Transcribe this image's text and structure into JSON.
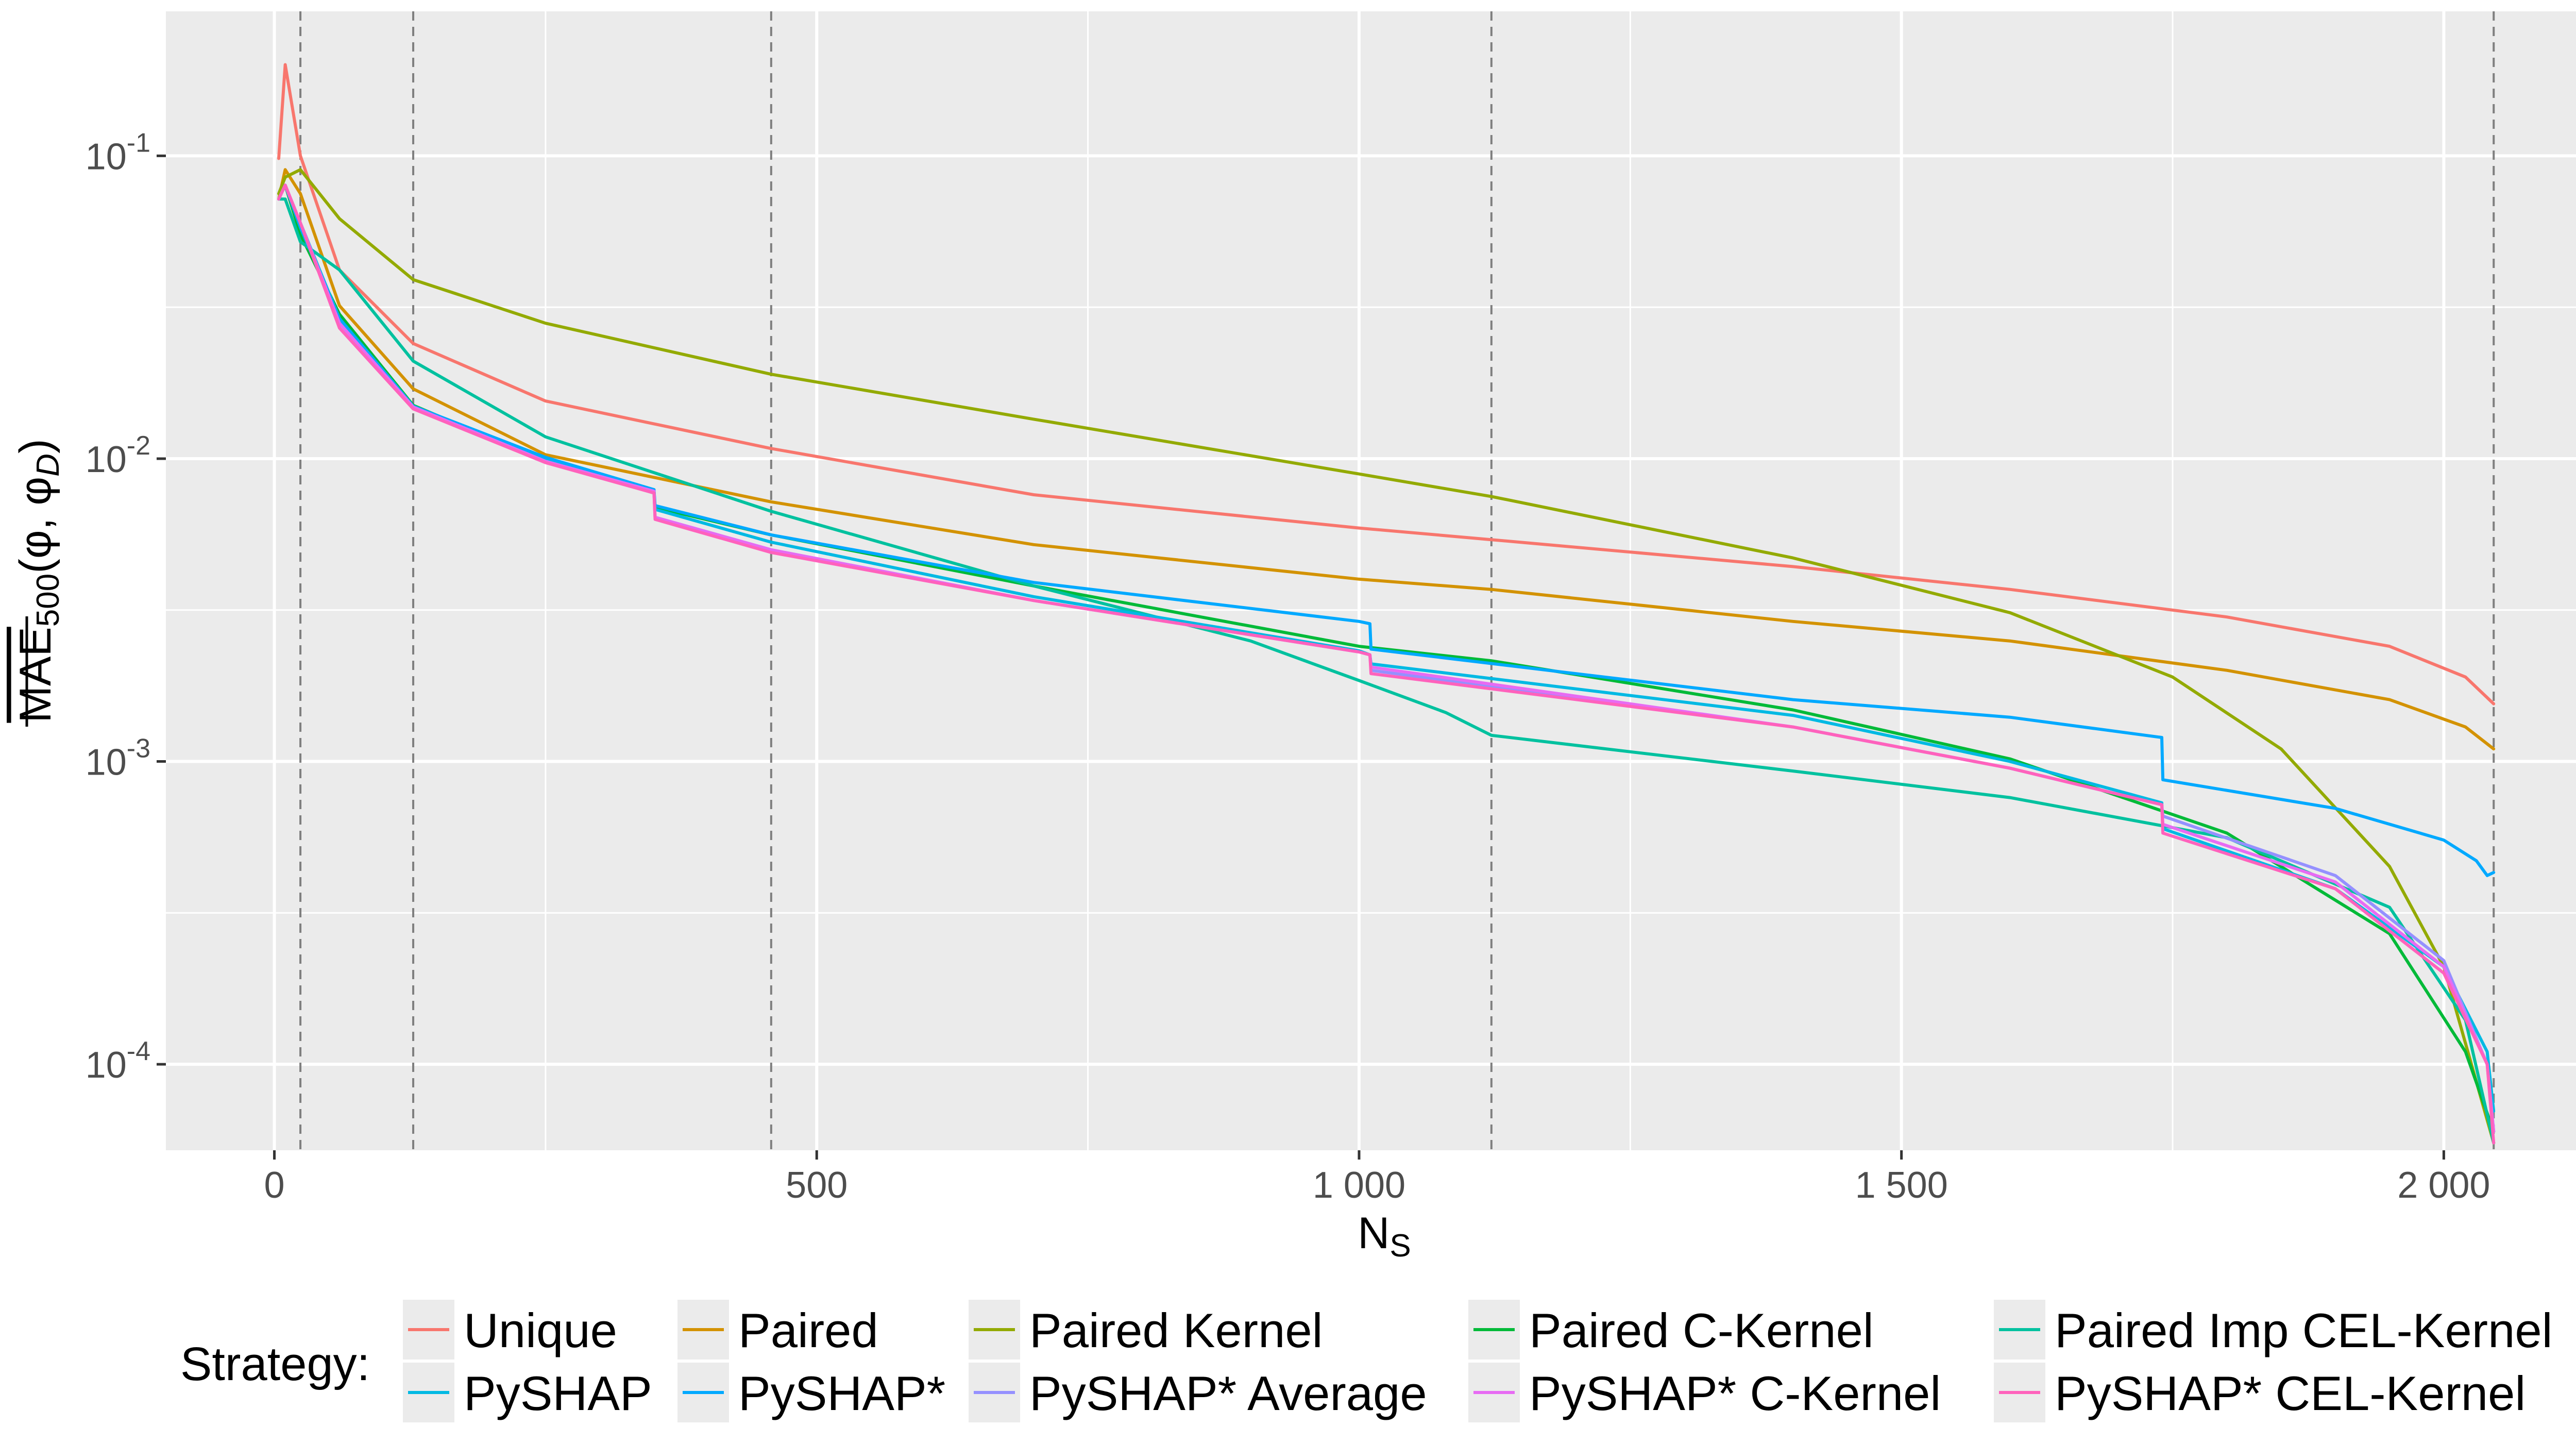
{
  "chart_data": {
    "type": "line",
    "title": "",
    "xlabel": "N",
    "xlabel_sub": "S",
    "ylabel": "MAE",
    "ylabel_sub": "500",
    "ylabel_rest": "(φ, φ",
    "ylabel_rest_sub": "D",
    "ylabel_end": ")",
    "yscale": "log10",
    "xlim": [
      -100,
      2148
    ],
    "ylim": [
      5.2e-05,
      0.3
    ],
    "x_ticks": [
      0,
      500,
      1000,
      1500,
      2000
    ],
    "x_tick_labels": [
      "0",
      "500",
      "1 000",
      "1 500",
      "2 000"
    ],
    "y_ticks": [
      {
        "value": 0.1,
        "base": "10",
        "exp": "-1"
      },
      {
        "value": 0.01,
        "base": "10",
        "exp": "-2"
      },
      {
        "value": 0.001,
        "base": "10",
        "exp": "-3"
      },
      {
        "value": 0.0001,
        "base": "10",
        "exp": "-4"
      }
    ],
    "vlines": [
      24,
      128,
      458,
      1122,
      2046
    ],
    "grid": true,
    "legend": {
      "title": "Strategy:",
      "position": "bottom"
    },
    "series": [
      {
        "name": "Unique",
        "color": "#F8766D",
        "x": [
          4,
          10,
          24,
          60,
          128,
          250,
          458,
          700,
          1000,
          1122,
          1400,
          1600,
          1800,
          1950,
          2020,
          2046
        ],
        "y": [
          0.098,
          0.2,
          0.1,
          0.042,
          0.024,
          0.0155,
          0.0108,
          0.0076,
          0.0059,
          0.0054,
          0.0044,
          0.0037,
          0.003,
          0.0024,
          0.0019,
          0.00155
        ]
      },
      {
        "name": "Paired",
        "color": "#D39200",
        "x": [
          4,
          10,
          24,
          60,
          128,
          250,
          458,
          700,
          1000,
          1122,
          1400,
          1600,
          1800,
          1950,
          2020,
          2046
        ],
        "y": [
          0.072,
          0.09,
          0.075,
          0.032,
          0.017,
          0.0103,
          0.0072,
          0.0052,
          0.004,
          0.0037,
          0.0029,
          0.0025,
          0.002,
          0.0016,
          0.0013,
          0.0011
        ]
      },
      {
        "name": "Paired Kernel",
        "color": "#93AA00",
        "x": [
          4,
          10,
          24,
          60,
          128,
          250,
          458,
          700,
          1000,
          1122,
          1400,
          1600,
          1750,
          1850,
          1950,
          2000,
          2046
        ],
        "y": [
          0.075,
          0.085,
          0.09,
          0.062,
          0.039,
          0.028,
          0.019,
          0.0135,
          0.0089,
          0.0075,
          0.0047,
          0.0031,
          0.0019,
          0.0011,
          0.00045,
          0.00021,
          5.5e-05
        ]
      },
      {
        "name": "Paired C-Kernel",
        "color": "#00BA38",
        "x": [
          4,
          10,
          24,
          60,
          128,
          250,
          350,
          351,
          458,
          700,
          1000,
          1122,
          1400,
          1600,
          1800,
          1950,
          2020,
          2046
        ],
        "y": [
          0.072,
          0.08,
          0.055,
          0.03,
          0.015,
          0.0098,
          0.0077,
          0.0069,
          0.0056,
          0.0038,
          0.0024,
          0.00215,
          0.00148,
          0.00102,
          0.00058,
          0.00027,
          0.00011,
          6e-05
        ]
      },
      {
        "name": "Paired Imp CEL-Kernel",
        "color": "#00C19F",
        "x": [
          4,
          10,
          24,
          60,
          128,
          250,
          458,
          700,
          900,
          1000,
          1080,
          1122,
          1400,
          1600,
          1800,
          1950,
          2020,
          2046
        ],
        "y": [
          0.072,
          0.072,
          0.052,
          0.042,
          0.021,
          0.0118,
          0.0067,
          0.0038,
          0.0025,
          0.00185,
          0.00145,
          0.00122,
          0.00093,
          0.00076,
          0.00056,
          0.00033,
          0.00014,
          5.5e-05
        ]
      },
      {
        "name": "PySHAP",
        "color": "#00B9E3",
        "x": [
          4,
          10,
          24,
          60,
          128,
          250,
          350,
          351,
          458,
          700,
          1000,
          1010,
          1011,
          1400,
          1600,
          1740,
          1741,
          1900,
          2000,
          2040,
          2046
        ],
        "y": [
          0.072,
          0.08,
          0.06,
          0.029,
          0.0148,
          0.0099,
          0.0079,
          0.0068,
          0.0053,
          0.0035,
          0.00232,
          0.00225,
          0.0021,
          0.00142,
          0.001,
          0.00073,
          0.0006,
          0.00038,
          0.00021,
          0.00011,
          7e-05
        ]
      },
      {
        "name": "PySHAP*",
        "color": "#00A9FF",
        "x": [
          4,
          10,
          24,
          60,
          128,
          250,
          350,
          351,
          458,
          700,
          1000,
          1010,
          1011,
          1400,
          1600,
          1740,
          1741,
          1900,
          2000,
          2030,
          2040,
          2046
        ],
        "y": [
          0.072,
          0.08,
          0.058,
          0.029,
          0.0149,
          0.0101,
          0.0079,
          0.007,
          0.0056,
          0.0039,
          0.0029,
          0.00285,
          0.00235,
          0.0016,
          0.0014,
          0.0012,
          0.00087,
          0.0007,
          0.00055,
          0.00047,
          0.00042,
          0.00043
        ]
      },
      {
        "name": "PySHAP* Average",
        "color": "#9590FF",
        "x": [
          4,
          10,
          24,
          60,
          128,
          250,
          350,
          351,
          458,
          700,
          1000,
          1010,
          1011,
          1400,
          1600,
          1740,
          1741,
          1900,
          2000,
          2040,
          2046
        ],
        "y": [
          0.072,
          0.08,
          0.06,
          0.028,
          0.0148,
          0.0098,
          0.0078,
          0.0064,
          0.005,
          0.0034,
          0.0023,
          0.00225,
          0.002,
          0.0013,
          0.00095,
          0.00072,
          0.00066,
          0.00042,
          0.00022,
          0.0001,
          6e-05
        ]
      },
      {
        "name": "PySHAP* C-Kernel",
        "color": "#E76BF3",
        "x": [
          4,
          10,
          24,
          60,
          128,
          250,
          350,
          351,
          458,
          700,
          1000,
          1010,
          1011,
          1400,
          1600,
          1740,
          1741,
          1900,
          2000,
          2040,
          2046
        ],
        "y": [
          0.072,
          0.08,
          0.06,
          0.028,
          0.0148,
          0.0098,
          0.0078,
          0.0064,
          0.005,
          0.0034,
          0.0023,
          0.00225,
          0.00205,
          0.0013,
          0.00095,
          0.00072,
          0.00062,
          0.0004,
          0.00021,
          0.0001,
          6e-05
        ]
      },
      {
        "name": "PySHAP* CEL-Kernel",
        "color": "#FF62BC",
        "x": [
          4,
          10,
          24,
          60,
          128,
          250,
          350,
          351,
          458,
          700,
          1000,
          1010,
          1011,
          1400,
          1600,
          1740,
          1741,
          1900,
          2000,
          2040,
          2046
        ],
        "y": [
          0.072,
          0.08,
          0.06,
          0.027,
          0.0146,
          0.0097,
          0.0077,
          0.0063,
          0.0049,
          0.0034,
          0.0023,
          0.00225,
          0.00195,
          0.0013,
          0.00095,
          0.00072,
          0.00058,
          0.00038,
          0.0002,
          0.0001,
          5.5e-05
        ]
      }
    ]
  }
}
